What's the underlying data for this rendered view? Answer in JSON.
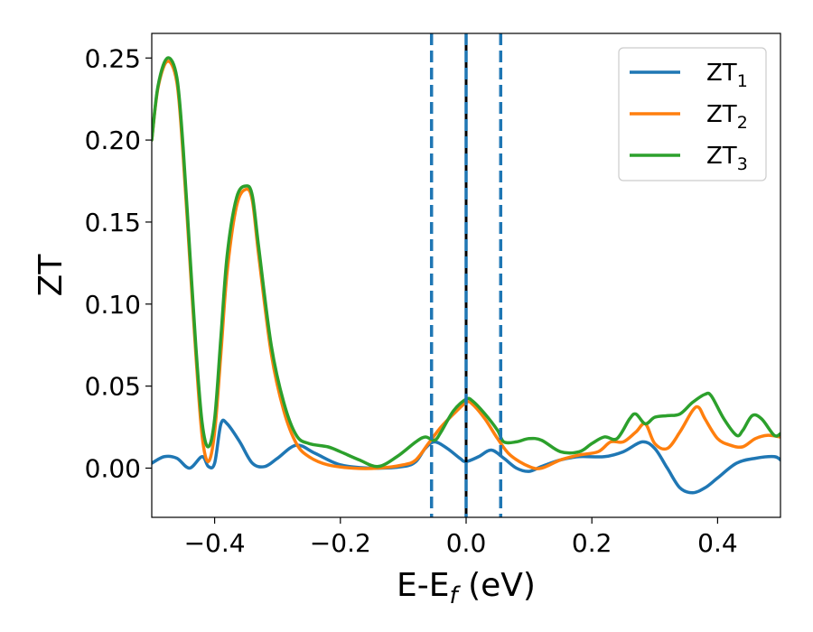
{
  "chart_data": {
    "type": "line",
    "title": "",
    "xlabel_main": "E-E",
    "xlabel_sub": "f",
    "xlabel_unit": " (eV)",
    "ylabel": "ZT",
    "xlim": [
      -0.5,
      0.5
    ],
    "ylim": [
      -0.03,
      0.265
    ],
    "x_ticks": [
      -0.4,
      -0.2,
      0.0,
      0.2,
      0.4
    ],
    "x_tick_labels": [
      "−0.4",
      "−0.2",
      "0.0",
      "0.2",
      "0.4"
    ],
    "y_ticks": [
      0.0,
      0.05,
      0.1,
      0.15,
      0.2,
      0.25
    ],
    "y_tick_labels": [
      "0.00",
      "0.05",
      "0.10",
      "0.15",
      "0.20",
      "0.25"
    ],
    "grid": false,
    "legend_position": "top-right",
    "vertical_lines": [
      {
        "x": -0.055,
        "color": "#1f77b4",
        "style": "dashed"
      },
      {
        "x": 0.0,
        "color": "#000000",
        "style": "solid"
      },
      {
        "x": 0.0,
        "color": "#1f77b4",
        "style": "dashed"
      },
      {
        "x": 0.055,
        "color": "#1f77b4",
        "style": "dashed"
      }
    ],
    "series": [
      {
        "name": "ZT",
        "sub": "1",
        "color": "#1f77b4",
        "points": [
          [
            -0.5,
            0.003
          ],
          [
            -0.48,
            0.007
          ],
          [
            -0.46,
            0.006
          ],
          [
            -0.44,
            0.0
          ],
          [
            -0.42,
            0.007
          ],
          [
            -0.41,
            0.001
          ],
          [
            -0.4,
            0.003
          ],
          [
            -0.39,
            0.027
          ],
          [
            -0.38,
            0.027
          ],
          [
            -0.36,
            0.016
          ],
          [
            -0.34,
            0.003
          ],
          [
            -0.32,
            0.001
          ],
          [
            -0.3,
            0.006
          ],
          [
            -0.27,
            0.014
          ],
          [
            -0.24,
            0.009
          ],
          [
            -0.2,
            0.002
          ],
          [
            -0.15,
            0.0
          ],
          [
            -0.1,
            0.001
          ],
          [
            -0.08,
            0.004
          ],
          [
            -0.065,
            0.012
          ],
          [
            -0.05,
            0.016
          ],
          [
            -0.03,
            0.012
          ],
          [
            -0.01,
            0.006
          ],
          [
            0.0,
            0.004
          ],
          [
            0.02,
            0.007
          ],
          [
            0.04,
            0.011
          ],
          [
            0.06,
            0.006
          ],
          [
            0.08,
            0.0
          ],
          [
            0.1,
            -0.002
          ],
          [
            0.12,
            0.001
          ],
          [
            0.15,
            0.005
          ],
          [
            0.18,
            0.007
          ],
          [
            0.22,
            0.007
          ],
          [
            0.25,
            0.01
          ],
          [
            0.28,
            0.016
          ],
          [
            0.3,
            0.012
          ],
          [
            0.32,
            0.0
          ],
          [
            0.34,
            -0.012
          ],
          [
            0.36,
            -0.015
          ],
          [
            0.38,
            -0.012
          ],
          [
            0.4,
            -0.006
          ],
          [
            0.43,
            0.003
          ],
          [
            0.46,
            0.006
          ],
          [
            0.49,
            0.007
          ],
          [
            0.5,
            0.005
          ]
        ]
      },
      {
        "name": "ZT",
        "sub": "2",
        "color": "#ff7f0e",
        "points": [
          [
            -0.5,
            0.2
          ],
          [
            -0.49,
            0.232
          ],
          [
            -0.475,
            0.248
          ],
          [
            -0.46,
            0.235
          ],
          [
            -0.45,
            0.19
          ],
          [
            -0.44,
            0.13
          ],
          [
            -0.43,
            0.07
          ],
          [
            -0.42,
            0.02
          ],
          [
            -0.41,
            0.004
          ],
          [
            -0.4,
            0.022
          ],
          [
            -0.39,
            0.07
          ],
          [
            -0.38,
            0.12
          ],
          [
            -0.365,
            0.16
          ],
          [
            -0.35,
            0.17
          ],
          [
            -0.34,
            0.163
          ],
          [
            -0.33,
            0.13
          ],
          [
            -0.31,
            0.07
          ],
          [
            -0.29,
            0.035
          ],
          [
            -0.27,
            0.015
          ],
          [
            -0.25,
            0.007
          ],
          [
            -0.22,
            0.002
          ],
          [
            -0.18,
            0.0
          ],
          [
            -0.14,
            0.0
          ],
          [
            -0.1,
            0.002
          ],
          [
            -0.08,
            0.005
          ],
          [
            -0.06,
            0.015
          ],
          [
            -0.04,
            0.025
          ],
          [
            -0.02,
            0.033
          ],
          [
            0.0,
            0.04
          ],
          [
            0.01,
            0.039
          ],
          [
            0.03,
            0.03
          ],
          [
            0.05,
            0.018
          ],
          [
            0.07,
            0.008
          ],
          [
            0.1,
            0.001
          ],
          [
            0.12,
            0.0
          ],
          [
            0.15,
            0.005
          ],
          [
            0.18,
            0.008
          ],
          [
            0.21,
            0.01
          ],
          [
            0.23,
            0.016
          ],
          [
            0.25,
            0.016
          ],
          [
            0.27,
            0.022
          ],
          [
            0.285,
            0.027
          ],
          [
            0.3,
            0.015
          ],
          [
            0.32,
            0.012
          ],
          [
            0.34,
            0.022
          ],
          [
            0.36,
            0.035
          ],
          [
            0.37,
            0.037
          ],
          [
            0.38,
            0.03
          ],
          [
            0.4,
            0.018
          ],
          [
            0.42,
            0.014
          ],
          [
            0.44,
            0.013
          ],
          [
            0.46,
            0.018
          ],
          [
            0.48,
            0.02
          ],
          [
            0.5,
            0.019
          ]
        ]
      },
      {
        "name": "ZT",
        "sub": "3",
        "color": "#2ca02c",
        "points": [
          [
            -0.5,
            0.2
          ],
          [
            -0.49,
            0.233
          ],
          [
            -0.475,
            0.25
          ],
          [
            -0.46,
            0.238
          ],
          [
            -0.45,
            0.195
          ],
          [
            -0.44,
            0.135
          ],
          [
            -0.43,
            0.075
          ],
          [
            -0.42,
            0.028
          ],
          [
            -0.41,
            0.013
          ],
          [
            -0.4,
            0.03
          ],
          [
            -0.39,
            0.08
          ],
          [
            -0.38,
            0.13
          ],
          [
            -0.365,
            0.165
          ],
          [
            -0.35,
            0.172
          ],
          [
            -0.34,
            0.166
          ],
          [
            -0.33,
            0.135
          ],
          [
            -0.31,
            0.075
          ],
          [
            -0.29,
            0.04
          ],
          [
            -0.27,
            0.02
          ],
          [
            -0.25,
            0.015
          ],
          [
            -0.22,
            0.013
          ],
          [
            -0.2,
            0.01
          ],
          [
            -0.17,
            0.005
          ],
          [
            -0.14,
            0.001
          ],
          [
            -0.11,
            0.007
          ],
          [
            -0.08,
            0.016
          ],
          [
            -0.065,
            0.019
          ],
          [
            -0.05,
            0.017
          ],
          [
            -0.04,
            0.022
          ],
          [
            -0.02,
            0.035
          ],
          [
            0.0,
            0.042
          ],
          [
            0.01,
            0.041
          ],
          [
            0.03,
            0.033
          ],
          [
            0.05,
            0.023
          ],
          [
            0.06,
            0.016
          ],
          [
            0.08,
            0.016
          ],
          [
            0.1,
            0.018
          ],
          [
            0.12,
            0.017
          ],
          [
            0.15,
            0.01
          ],
          [
            0.18,
            0.01
          ],
          [
            0.2,
            0.015
          ],
          [
            0.22,
            0.019
          ],
          [
            0.24,
            0.018
          ],
          [
            0.26,
            0.03
          ],
          [
            0.27,
            0.033
          ],
          [
            0.285,
            0.027
          ],
          [
            0.3,
            0.031
          ],
          [
            0.32,
            0.032
          ],
          [
            0.34,
            0.033
          ],
          [
            0.36,
            0.04
          ],
          [
            0.38,
            0.045
          ],
          [
            0.39,
            0.044
          ],
          [
            0.41,
            0.03
          ],
          [
            0.43,
            0.02
          ],
          [
            0.44,
            0.023
          ],
          [
            0.455,
            0.032
          ],
          [
            0.47,
            0.03
          ],
          [
            0.49,
            0.02
          ],
          [
            0.5,
            0.021
          ]
        ]
      }
    ]
  }
}
